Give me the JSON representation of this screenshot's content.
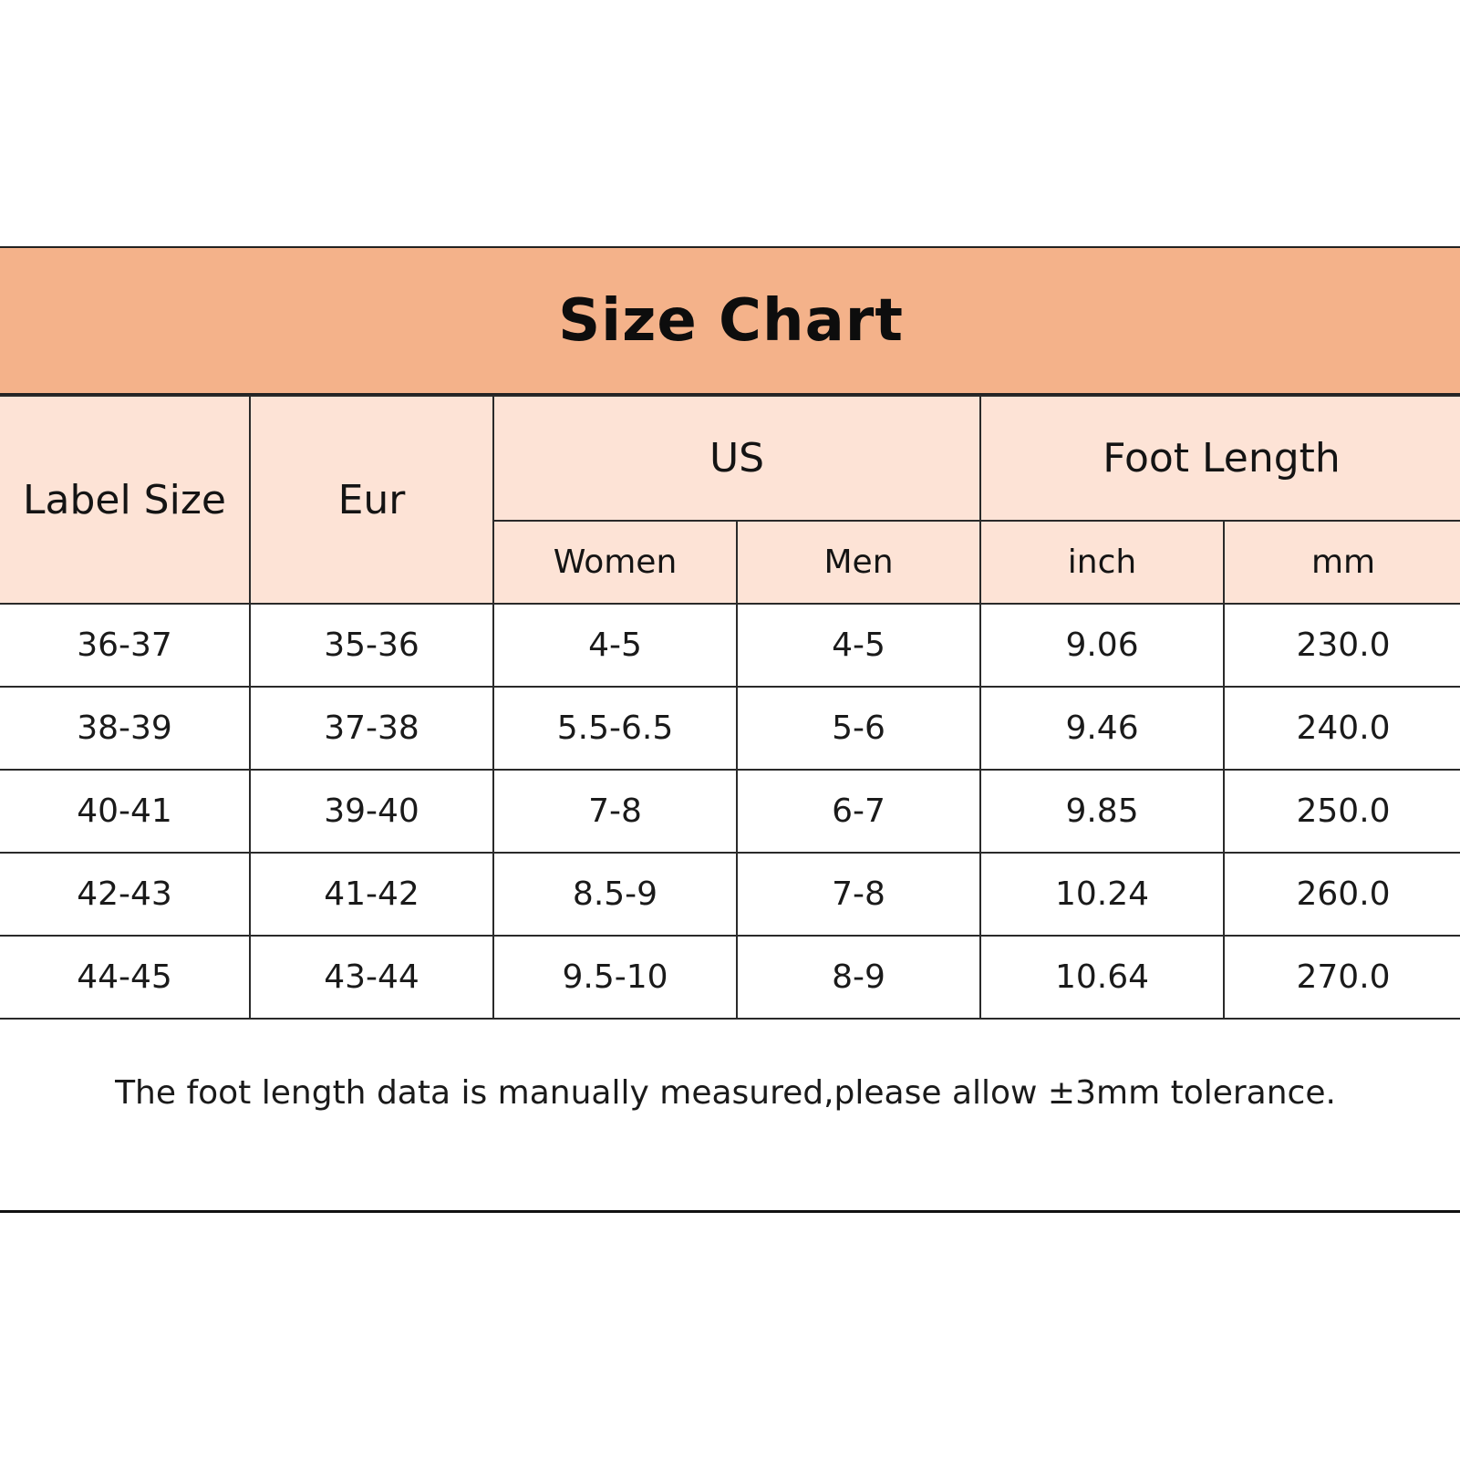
{
  "title": "Size Chart",
  "headers": {
    "label_size": "Label Size",
    "eur": "Eur",
    "us": "US",
    "foot_length": "Foot Length",
    "women": "Women",
    "men": "Men",
    "inch": "inch",
    "mm": "mm"
  },
  "rows": [
    {
      "label": "36-37",
      "eur": "35-36",
      "women": "4-5",
      "men": "4-5",
      "inch": "9.06",
      "mm": "230.0"
    },
    {
      "label": "38-39",
      "eur": "37-38",
      "women": "5.5-6.5",
      "men": "5-6",
      "inch": "9.46",
      "mm": "240.0"
    },
    {
      "label": "40-41",
      "eur": "39-40",
      "women": "7-8",
      "men": "6-7",
      "inch": "9.85",
      "mm": "250.0"
    },
    {
      "label": "42-43",
      "eur": "41-42",
      "women": "8.5-9",
      "men": "7-8",
      "inch": "10.24",
      "mm": "260.0"
    },
    {
      "label": "44-45",
      "eur": "43-44",
      "women": "9.5-10",
      "men": "8-9",
      "inch": "10.64",
      "mm": "270.0"
    }
  ],
  "note": "The foot length data is manually measured,please allow ±3mm tolerance.",
  "colors": {
    "title_band": "#f4b28a",
    "header_fill": "#fde3d6"
  }
}
